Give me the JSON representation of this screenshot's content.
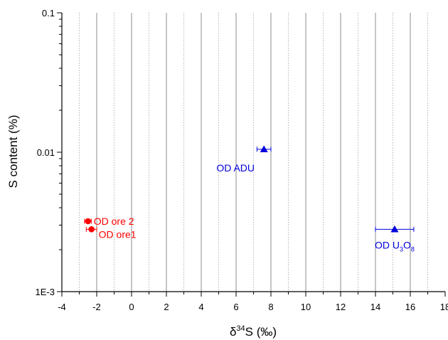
{
  "chart_data": {
    "type": "scatter",
    "title": "",
    "xlabel": {
      "delta": "δ",
      "sup": "34",
      "rest": "S (‰)"
    },
    "ylabel": "S content (%)",
    "xlim": [
      -4,
      18
    ],
    "ylim": [
      0.001,
      0.1
    ],
    "y_scale": "log",
    "x_ticks": [
      -4,
      -2,
      0,
      2,
      4,
      6,
      8,
      10,
      12,
      14,
      16,
      18
    ],
    "x_tick_labels": [
      "-4",
      "-2",
      "0",
      "2",
      "4",
      "6",
      "8",
      "10",
      "12",
      "14",
      "16",
      "18"
    ],
    "y_ticks": [
      0.001,
      0.01,
      0.1
    ],
    "y_tick_labels": [
      "1E-3",
      "0.01",
      "0.1"
    ],
    "grid": {
      "x_major": "solid",
      "x_minor": "dotted",
      "y": "none"
    },
    "colors": {
      "red": "#ff0000",
      "blue": "#0000dd"
    },
    "points": [
      {
        "label": "OD ore 2",
        "x": -2.5,
        "y": 0.0032,
        "xerr": 0.2,
        "marker": "circle",
        "color": "#ff0000"
      },
      {
        "label": "OD ore1",
        "x": -2.3,
        "y": 0.0028,
        "xerr": 0.3,
        "marker": "circle",
        "color": "#ff0000"
      },
      {
        "label": "OD ADU",
        "x": 7.6,
        "y": 0.0105,
        "xerr": 0.4,
        "marker": "triangle",
        "color": "#0000dd"
      },
      {
        "label": "OD U3O8",
        "x": 15.1,
        "y": 0.0028,
        "xerr": 1.1,
        "marker": "triangle",
        "color": "#0000dd"
      }
    ],
    "annotations": [
      {
        "parts": [
          {
            "t": "OD ore 2"
          }
        ],
        "color": "#ff0000"
      },
      {
        "parts": [
          {
            "t": "OD ore1"
          }
        ],
        "color": "#ff0000"
      },
      {
        "parts": [
          {
            "t": "OD ADU"
          }
        ],
        "color": "#0000dd"
      },
      {
        "parts": [
          {
            "t": "OD U"
          },
          {
            "t": "3",
            "sub": true
          },
          {
            "t": "O"
          },
          {
            "t": "8",
            "sub": true
          }
        ],
        "color": "#0000dd"
      }
    ]
  }
}
